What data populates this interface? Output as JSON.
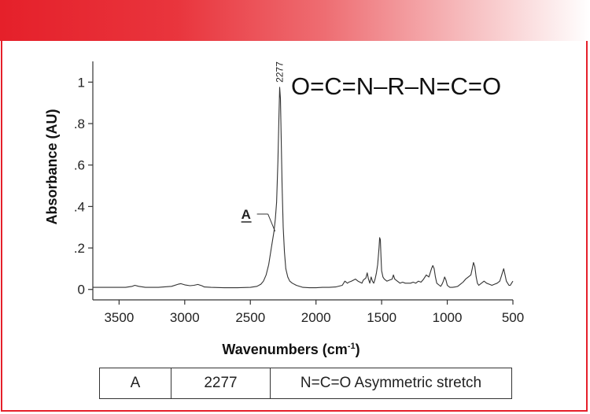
{
  "chart_data": {
    "type": "line",
    "title": "",
    "xlabel": "Wavenumbers (cm",
    "xlabel_sup": "-1",
    "xlabel_close": ")",
    "ylabel": "Absorbance (AU)",
    "xlim": [
      3700,
      500
    ],
    "ylim": [
      -0.02,
      1.1
    ],
    "x_reversed": true,
    "grid": false,
    "x_ticks": [
      3500,
      3000,
      2500,
      2000,
      1500,
      1000,
      500
    ],
    "x_tick_labels": [
      "3500",
      "3000",
      "2500",
      "2000",
      "1500",
      "1000",
      "500"
    ],
    "y_ticks": [
      0,
      0.2,
      0.4,
      0.6,
      0.8,
      1
    ],
    "y_tick_labels": [
      "0",
      ".2",
      ".4",
      ".6",
      ".8",
      "1"
    ],
    "line_color": "#333333",
    "series": [
      {
        "x": [
          3700,
          3550,
          3450,
          3400,
          3380,
          3350,
          3300,
          3200,
          3100,
          3050,
          3030,
          3000,
          2960,
          2930,
          2900,
          2870,
          2850,
          2800,
          2700,
          2600,
          2500,
          2450,
          2420,
          2400,
          2380,
          2360,
          2340,
          2320,
          2310,
          2300,
          2290,
          2283,
          2277,
          2271,
          2265,
          2258,
          2250,
          2240,
          2230,
          2215,
          2200,
          2180,
          2150,
          2100,
          2050,
          2000,
          1950,
          1900,
          1850,
          1800,
          1780,
          1760,
          1750,
          1730,
          1700,
          1680,
          1650,
          1640,
          1620,
          1610,
          1600,
          1590,
          1580,
          1570,
          1560,
          1550,
          1540,
          1530,
          1520,
          1515,
          1510,
          1505,
          1500,
          1490,
          1480,
          1460,
          1440,
          1420,
          1410,
          1400,
          1380,
          1360,
          1340,
          1320,
          1300,
          1280,
          1260,
          1240,
          1220,
          1200,
          1180,
          1160,
          1140,
          1120,
          1110,
          1100,
          1090,
          1080,
          1060,
          1050,
          1040,
          1030,
          1020,
          1010,
          1000,
          990,
          980,
          960,
          940,
          920,
          900,
          880,
          860,
          840,
          820,
          810,
          800,
          790,
          780,
          770,
          760,
          740,
          720,
          700,
          680,
          660,
          640,
          620,
          600,
          590,
          580,
          570,
          560,
          550,
          540,
          530,
          520,
          510,
          500
        ],
        "y": [
          0.01,
          0.01,
          0.01,
          0.015,
          0.02,
          0.015,
          0.01,
          0.01,
          0.015,
          0.025,
          0.028,
          0.022,
          0.018,
          0.02,
          0.024,
          0.018,
          0.012,
          0.01,
          0.008,
          0.008,
          0.01,
          0.015,
          0.025,
          0.04,
          0.07,
          0.12,
          0.2,
          0.28,
          0.34,
          0.42,
          0.62,
          0.82,
          0.975,
          0.92,
          0.72,
          0.5,
          0.3,
          0.18,
          0.1,
          0.06,
          0.04,
          0.03,
          0.02,
          0.01,
          0.008,
          0.008,
          0.01,
          0.01,
          0.012,
          0.02,
          0.04,
          0.03,
          0.035,
          0.04,
          0.05,
          0.04,
          0.03,
          0.045,
          0.055,
          0.08,
          0.05,
          0.03,
          0.06,
          0.04,
          0.03,
          0.05,
          0.08,
          0.12,
          0.2,
          0.25,
          0.24,
          0.16,
          0.09,
          0.06,
          0.05,
          0.04,
          0.045,
          0.05,
          0.07,
          0.05,
          0.04,
          0.03,
          0.035,
          0.03,
          0.03,
          0.03,
          0.035,
          0.03,
          0.04,
          0.035,
          0.05,
          0.07,
          0.06,
          0.1,
          0.115,
          0.1,
          0.06,
          0.03,
          0.02,
          0.015,
          0.025,
          0.04,
          0.06,
          0.045,
          0.02,
          0.015,
          0.01,
          0.01,
          0.012,
          0.015,
          0.025,
          0.035,
          0.05,
          0.06,
          0.07,
          0.1,
          0.13,
          0.11,
          0.06,
          0.03,
          0.02,
          0.03,
          0.04,
          0.03,
          0.025,
          0.02,
          0.025,
          0.03,
          0.04,
          0.06,
          0.08,
          0.1,
          0.07,
          0.04,
          0.03,
          0.02,
          0.02,
          0.03,
          0.04
        ]
      }
    ],
    "annotations": {
      "peak_label": "2277",
      "peak_x": 2277,
      "peak_y": 0.975,
      "marker_label": "A",
      "marker_x": 2300,
      "marker_y": 0.28,
      "formula": "O=C=N–R–N=C=O"
    }
  },
  "table": {
    "rows": [
      [
        "A",
        "2277",
        "N=C=O Asymmetric stretch"
      ]
    ]
  },
  "colors": {
    "accent": "#e5202a",
    "line": "#333333"
  }
}
